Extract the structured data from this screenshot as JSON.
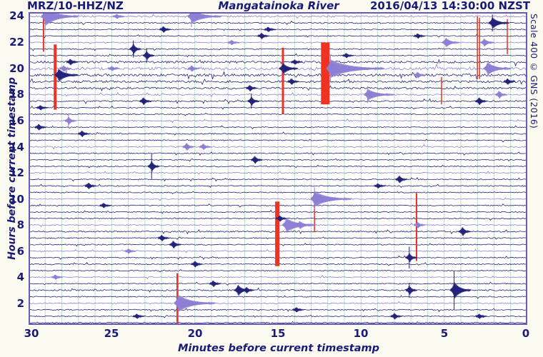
{
  "header": {
    "station": "MRZ/10-HHZ/NZ",
    "title": "Mangatainoka River",
    "timestamp": "2016/04/13 14:30:00 NZST"
  },
  "scale_label": "Scale 400 © GNS (2016)",
  "y_axis": {
    "label": "Hours before current timestamp",
    "ticks": [
      "24",
      "22",
      "20",
      "18",
      "16",
      "14",
      "12",
      "10",
      "8",
      "6",
      "4",
      "2"
    ]
  },
  "x_axis": {
    "label": "Minutes before current timestamp",
    "ticks": [
      "30",
      "25",
      "20",
      "15",
      "10",
      "5",
      "0"
    ]
  },
  "chart_data": {
    "type": "helicorder",
    "description": "24-hour seismic drum record; 48 trace rows of 30 minutes each; top row = 24 hours before current timestamp; x axis = minutes before current timestamp (30 left to 0 right); every 4th row (labeled even hours) drawn purple, others navy; red bars mark clipped/saturated periods",
    "rows": 48,
    "minutes_per_row": 30,
    "x_range": [
      30,
      0
    ],
    "hours_range": [
      24,
      0
    ],
    "grid": "vertical line every 1 minute",
    "colors": {
      "navy": "#23237a",
      "purple": "#8f7fd4",
      "clip": "#ee3322",
      "grid": "#c3dfc3",
      "border": "#6a5abe",
      "text": "#1a1a78",
      "plot_bg": "#ffffff",
      "page_bg": "#fbfaf1"
    },
    "busy_rows": {
      "0": 1.7,
      "1": 1.2,
      "7": 2.2,
      "8": 2.6,
      "9": 2.4,
      "10": 2.2,
      "11": 1.8,
      "12": 1.4,
      "13": 1.4,
      "20": 1.3,
      "33": 1.3,
      "42": 1.3
    },
    "events_key": "r=row index from top, m=minutes before (x), a=amplitude px, c=coda minutes, t=tall spike, col=color override",
    "events": [
      {
        "r": 0,
        "m": 29.0,
        "a": 13,
        "c": 2.0,
        "t": 1
      },
      {
        "r": 0,
        "m": 24.7,
        "a": 4
      },
      {
        "r": 0,
        "m": 20.2,
        "a": 10,
        "c": 1.8,
        "t": 1
      },
      {
        "r": 1,
        "m": 2.1,
        "a": 8,
        "c": 1.0,
        "t": 1
      },
      {
        "r": 2,
        "m": 21.9,
        "a": 5
      },
      {
        "r": 2,
        "m": 15.6,
        "a": 4
      },
      {
        "r": 3,
        "m": 16.0,
        "a": 5
      },
      {
        "r": 3,
        "m": 6.6,
        "a": 4
      },
      {
        "r": 4,
        "m": 17.8,
        "a": 4
      },
      {
        "r": 4,
        "m": 4.9,
        "a": 7,
        "c": 0.8
      },
      {
        "r": 4,
        "m": 2.6,
        "a": 6,
        "c": 0.6
      },
      {
        "r": 5,
        "m": 23.7,
        "a": 8,
        "t": 1
      },
      {
        "r": 6,
        "m": 22.9,
        "a": 7,
        "t": 1
      },
      {
        "r": 6,
        "m": 10.9,
        "a": 4
      },
      {
        "r": 7,
        "m": 27.5,
        "a": 5
      },
      {
        "r": 7,
        "m": 14.0,
        "a": 4
      },
      {
        "r": 8,
        "m": 11.85,
        "a": 13,
        "c": 3.2,
        "t": 1
      },
      {
        "r": 8,
        "m": 2.4,
        "a": 9,
        "c": 1.4
      },
      {
        "r": 8,
        "m": 20.2,
        "a": 5
      },
      {
        "r": 8,
        "m": 27.9,
        "a": 5
      },
      {
        "r": 8,
        "m": 25.0,
        "a": 4
      },
      {
        "r": 8,
        "m": 14.7,
        "a": 8,
        "c": 0.9,
        "col": "navy"
      },
      {
        "r": 9,
        "m": 28.2,
        "a": 9,
        "c": 1.2
      },
      {
        "r": 9,
        "m": 6.6,
        "a": 5,
        "col": "purple"
      },
      {
        "r": 10,
        "m": 14.2,
        "a": 5
      },
      {
        "r": 10,
        "m": 1.2,
        "a": 5
      },
      {
        "r": 11,
        "m": 16.7,
        "a": 5
      },
      {
        "r": 12,
        "m": 9.6,
        "a": 8,
        "c": 1.6,
        "t": 1
      },
      {
        "r": 12,
        "m": 1.7,
        "a": 6
      },
      {
        "r": 13,
        "m": 16.6,
        "a": 7,
        "t": 1
      },
      {
        "r": 13,
        "m": 23.1,
        "a": 6
      },
      {
        "r": 13,
        "m": 2.9,
        "a": 6
      },
      {
        "r": 14,
        "m": 29.3,
        "a": 4
      },
      {
        "r": 16,
        "m": 27.6,
        "a": 6,
        "t": 1
      },
      {
        "r": 17,
        "m": 29.4,
        "a": 5
      },
      {
        "r": 18,
        "m": 26.8,
        "a": 5
      },
      {
        "r": 20,
        "m": 20.5,
        "a": 6
      },
      {
        "r": 20,
        "m": 19.5,
        "a": 5
      },
      {
        "r": 22,
        "m": 16.4,
        "a": 6
      },
      {
        "r": 23,
        "m": 22.6,
        "a": 8,
        "t": 2
      },
      {
        "r": 25,
        "m": 7.7,
        "a": 6
      },
      {
        "r": 26,
        "m": 26.4,
        "a": 5
      },
      {
        "r": 26,
        "m": 9.0,
        "a": 4
      },
      {
        "r": 28,
        "m": 12.8,
        "a": 11,
        "c": 2.2,
        "t": 1
      },
      {
        "r": 29,
        "m": 25.5,
        "a": 4
      },
      {
        "r": 31,
        "m": 14.9,
        "a": 5
      },
      {
        "r": 32,
        "m": 14.5,
        "a": 10,
        "c": 1.8
      },
      {
        "r": 32,
        "m": 13.7,
        "a": 6,
        "c": 0.8
      },
      {
        "r": 32,
        "m": 6.6,
        "a": 5
      },
      {
        "r": 33,
        "m": 3.9,
        "a": 7
      },
      {
        "r": 34,
        "m": 22.0,
        "a": 5
      },
      {
        "r": 35,
        "m": 21.3,
        "a": 6
      },
      {
        "r": 36,
        "m": 24.0,
        "a": 4
      },
      {
        "r": 37,
        "m": 7.1,
        "a": 7,
        "t": 2
      },
      {
        "r": 38,
        "m": 20.0,
        "a": 5
      },
      {
        "r": 40,
        "m": 28.4,
        "a": 4
      },
      {
        "r": 41,
        "m": 18.9,
        "a": 5
      },
      {
        "r": 42,
        "m": 17.4,
        "a": 8,
        "c": 0.7
      },
      {
        "r": 42,
        "m": 4.4,
        "a": 12,
        "c": 1.0,
        "t": 2
      },
      {
        "r": 42,
        "m": 7.1,
        "a": 7,
        "t": 1
      },
      {
        "r": 42,
        "m": 16.9,
        "a": 5
      },
      {
        "r": 44,
        "m": 21.0,
        "a": 12,
        "c": 2.2,
        "t": 2
      },
      {
        "r": 45,
        "m": 13.9,
        "a": 4
      },
      {
        "r": 46,
        "m": 23.5,
        "a": 4
      },
      {
        "r": 46,
        "m": 8.0,
        "a": 5
      },
      {
        "r": 46,
        "m": 2.9,
        "a": 4
      }
    ],
    "clips_key": "m=minutes before (x center), r0/r1=row span, w=width px",
    "clips": [
      {
        "m": 29.1,
        "r0": 0,
        "r1": 5.4,
        "w": 2
      },
      {
        "m": 28.4,
        "r0": 4.3,
        "r1": 14.3,
        "w": 4
      },
      {
        "m": 14.7,
        "r0": 4.8,
        "r1": 14.9,
        "w": 3
      },
      {
        "m": 21.05,
        "r0": 39.4,
        "r1": 47.8,
        "w": 2.5
      },
      {
        "m": 15.04,
        "r0": 28.4,
        "r1": 38.3,
        "w": 6
      },
      {
        "m": 12.15,
        "r0": 4.0,
        "r1": 13.5,
        "w": 12
      },
      {
        "m": 12.8,
        "r0": 27.3,
        "r1": 33.1,
        "w": 1.5
      },
      {
        "m": 6.66,
        "r0": 27.1,
        "r1": 37.5,
        "w": 2
      },
      {
        "m": 5.16,
        "r0": 9.3,
        "r1": 13.5,
        "w": 1.5
      },
      {
        "m": 3.0,
        "r0": 0,
        "r1": 9.6,
        "w": 1.5
      },
      {
        "m": 2.87,
        "r0": 0.2,
        "r1": 9.6,
        "w": 1.5
      },
      {
        "m": 1.2,
        "r0": 0.4,
        "r1": 5.8,
        "w": 1.5
      }
    ]
  }
}
